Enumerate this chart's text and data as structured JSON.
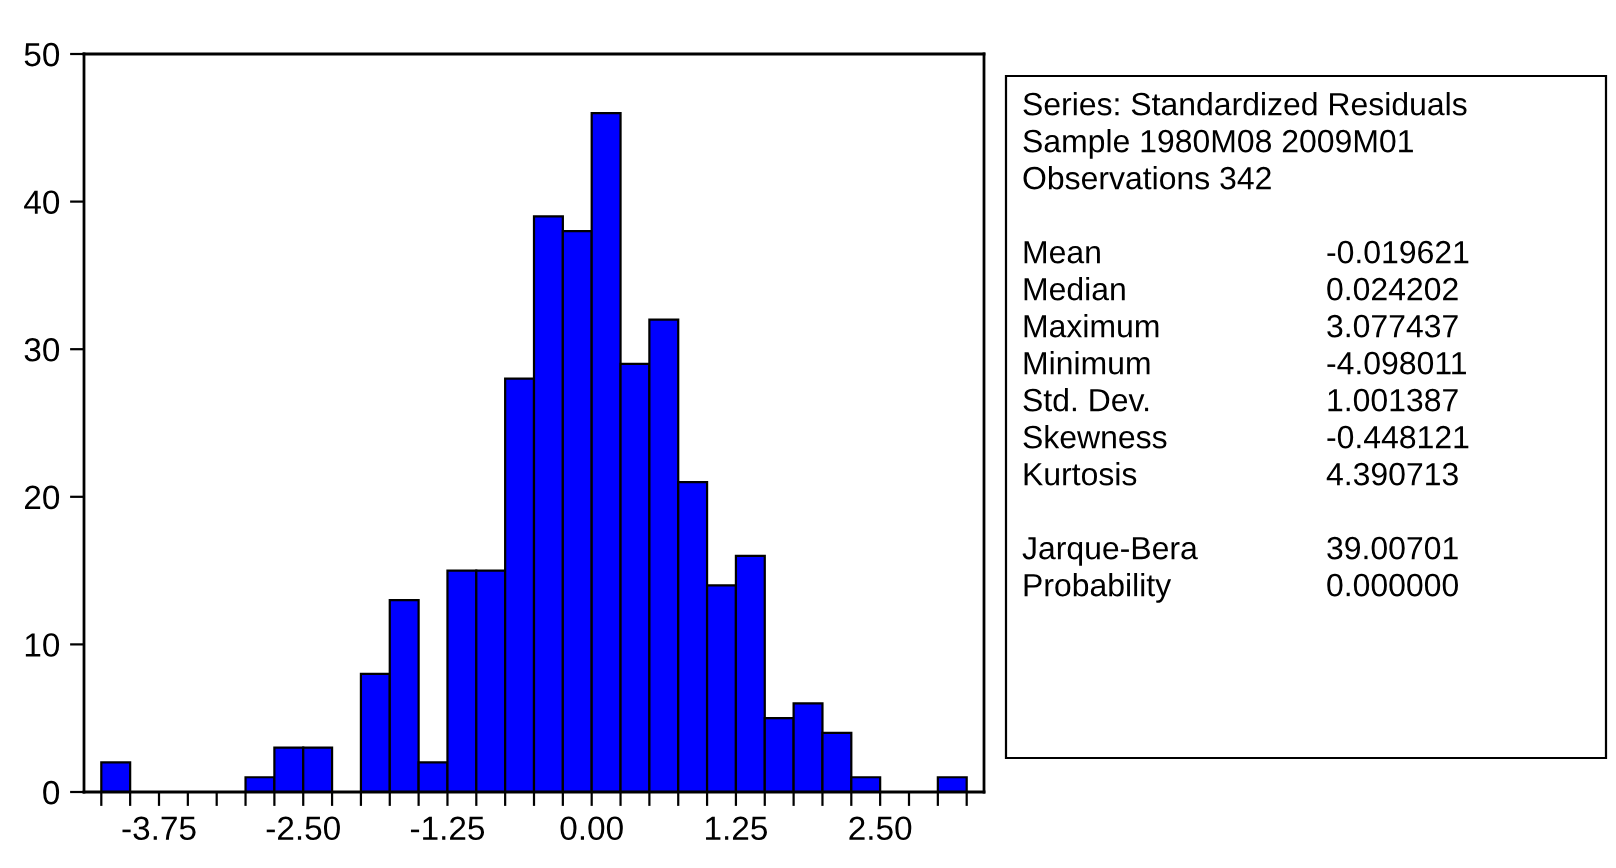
{
  "chart_data": {
    "type": "histogram",
    "bins": [
      -4.25,
      -4.0,
      -3.75,
      -3.5,
      -3.25,
      -3.0,
      -2.75,
      -2.5,
      -2.25,
      -2.0,
      -1.75,
      -1.5,
      -1.25,
      -1.0,
      -0.75,
      -0.5,
      -0.25,
      0.0,
      0.25,
      0.5,
      0.75,
      1.0,
      1.25,
      1.5,
      1.75,
      2.0,
      2.25,
      2.5,
      2.75,
      3.0,
      3.25
    ],
    "values": [
      2,
      0,
      0,
      0,
      0,
      1,
      3,
      3,
      0,
      8,
      13,
      2,
      15,
      15,
      28,
      39,
      38,
      46,
      29,
      32,
      21,
      14,
      16,
      5,
      6,
      4,
      1,
      0,
      0,
      1
    ],
    "color": "#0000ff",
    "xlim": [
      -4.4,
      3.4
    ],
    "xticks": [
      {
        "value": -4.25,
        "label": null
      },
      {
        "value": -4.0,
        "label": null
      },
      {
        "value": -3.75,
        "label": "-3.75"
      },
      {
        "value": -3.5,
        "label": null
      },
      {
        "value": -3.25,
        "label": null
      },
      {
        "value": -3.0,
        "label": null
      },
      {
        "value": -2.75,
        "label": null
      },
      {
        "value": -2.5,
        "label": "-2.50"
      },
      {
        "value": -2.25,
        "label": null
      },
      {
        "value": -2.0,
        "label": null
      },
      {
        "value": -1.75,
        "label": null
      },
      {
        "value": -1.5,
        "label": null
      },
      {
        "value": -1.25,
        "label": "-1.25"
      },
      {
        "value": -1.0,
        "label": null
      },
      {
        "value": -0.75,
        "label": null
      },
      {
        "value": -0.5,
        "label": null
      },
      {
        "value": -0.25,
        "label": null
      },
      {
        "value": 0.0,
        "label": "0.00"
      },
      {
        "value": 0.25,
        "label": null
      },
      {
        "value": 0.5,
        "label": null
      },
      {
        "value": 0.75,
        "label": null
      },
      {
        "value": 1.0,
        "label": null
      },
      {
        "value": 1.25,
        "label": "1.25"
      },
      {
        "value": 1.5,
        "label": null
      },
      {
        "value": 1.75,
        "label": null
      },
      {
        "value": 2.0,
        "label": null
      },
      {
        "value": 2.25,
        "label": null
      },
      {
        "value": 2.5,
        "label": "2.50"
      },
      {
        "value": 2.75,
        "label": null
      },
      {
        "value": 3.0,
        "label": null
      },
      {
        "value": 3.25,
        "label": null
      }
    ],
    "ylim": [
      0,
      50
    ],
    "yticks": [
      0,
      10,
      20,
      30,
      40,
      50
    ],
    "grid": false,
    "annotations": [
      "Series: Standardized Residuals",
      "Sample 1980M08 2009M01",
      "Observations 342",
      "Mean",
      "-0.019621",
      "Median",
      "0.024202",
      "Maximum",
      "3.077437",
      "Minimum",
      "-4.098011",
      "Std. Dev.",
      "1.001387",
      "Skewness",
      "-0.448121",
      "Kurtosis",
      "4.390713",
      "Jarque-Bera",
      "39.00701",
      "Probability",
      "0.000000"
    ]
  }
}
